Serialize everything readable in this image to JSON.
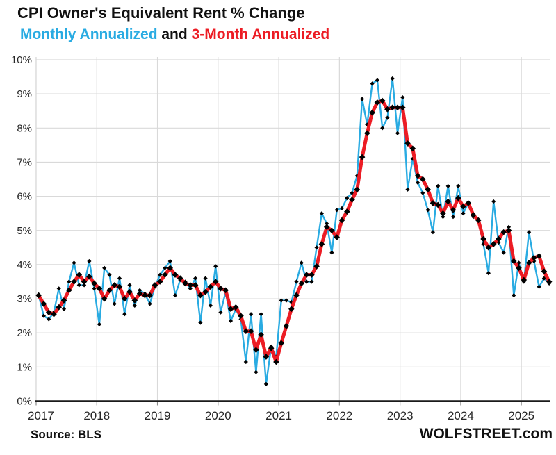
{
  "header": {
    "title": "CPI Owner's Equivalent Rent % Change",
    "subtitle_monthly": "Monthly Annualized",
    "subtitle_and": " and ",
    "subtitle_3month": "3-Month Annualized"
  },
  "footer": {
    "source": "Source: BLS",
    "watermark": "WOLFSTREET.com"
  },
  "chart_data": {
    "type": "line",
    "title": "CPI Owner's Equivalent Rent % Change",
    "subtitle": "Monthly Annualized and 3-Month Annualized",
    "frequency": "monthly",
    "points_start": "2017-01",
    "points_end": "2025-06",
    "x_axis": {
      "year_labels": [
        "2017",
        "2018",
        "2019",
        "2020",
        "2021",
        "2022",
        "2023",
        "2024",
        "2025"
      ]
    },
    "y_axis": {
      "min": 0,
      "max": 10,
      "tick_step": 1,
      "tick_suffix": "%"
    },
    "grid": true,
    "legend_position": "in-subtitle",
    "colors": {
      "grid": "#D9D9D9",
      "axis": "#1A1A1A",
      "marker": "#000000",
      "monthly_blue": "#29ABE2",
      "three_month_red": "#EC1C24"
    },
    "series": [
      {
        "name": "Monthly Annualized",
        "color": "#29ABE2",
        "marker": "diamond",
        "line_width": 2.4,
        "values": [
          3.1,
          2.5,
          2.4,
          2.6,
          3.3,
          2.7,
          3.5,
          4.05,
          3.4,
          3.4,
          4.1,
          3.3,
          2.25,
          3.9,
          3.7,
          2.85,
          3.6,
          2.55,
          3.4,
          2.8,
          3.25,
          3.15,
          2.85,
          3.35,
          3.7,
          3.9,
          4.1,
          3.1,
          3.55,
          3.5,
          3.3,
          3.6,
          2.3,
          3.6,
          2.8,
          3.95,
          2.6,
          3.2,
          2.35,
          2.7,
          2.4,
          1.15,
          2.55,
          0.85,
          2.55,
          0.5,
          1.6,
          1.3,
          2.95,
          2.95,
          2.9,
          3.5,
          4.05,
          3.5,
          3.5,
          4.5,
          5.5,
          5.2,
          4.35,
          5.6,
          5.65,
          5.95,
          6.1,
          6.6,
          8.85,
          8.1,
          9.3,
          9.4,
          8.0,
          8.3,
          9.45,
          7.85,
          8.9,
          6.2,
          7.1,
          6.4,
          6.1,
          5.6,
          4.95,
          6.3,
          5.4,
          6.3,
          5.4,
          6.3,
          5.5,
          5.8,
          5.4,
          5.3,
          4.6,
          3.75,
          5.85,
          4.65,
          4.35,
          5.1,
          3.1,
          4.05,
          3.5,
          4.95,
          4.1,
          3.35,
          3.6,
          3.45
        ]
      },
      {
        "name": "3-Month Annualized",
        "color": "#EC1C24",
        "marker": "diamond",
        "line_width": 5,
        "values": [
          3.1,
          2.85,
          2.6,
          2.55,
          2.75,
          2.95,
          3.25,
          3.5,
          3.7,
          3.5,
          3.65,
          3.45,
          3.3,
          3.0,
          3.25,
          3.4,
          3.35,
          3.0,
          3.2,
          2.95,
          3.15,
          3.1,
          3.1,
          3.4,
          3.5,
          3.7,
          3.9,
          3.7,
          3.6,
          3.45,
          3.4,
          3.4,
          3.1,
          3.2,
          3.35,
          3.5,
          3.3,
          3.25,
          2.7,
          2.75,
          2.5,
          2.05,
          2.05,
          1.5,
          1.95,
          1.3,
          1.55,
          1.15,
          1.7,
          2.2,
          2.7,
          3.1,
          3.45,
          3.7,
          3.7,
          3.95,
          4.6,
          5.1,
          5.0,
          4.8,
          5.3,
          5.55,
          5.9,
          6.2,
          7.15,
          7.85,
          8.45,
          8.75,
          8.8,
          8.55,
          8.6,
          8.6,
          8.6,
          7.55,
          7.4,
          6.6,
          6.5,
          6.2,
          5.8,
          5.75,
          5.5,
          5.85,
          5.6,
          5.95,
          5.7,
          5.8,
          5.45,
          5.3,
          4.75,
          4.5,
          4.6,
          4.75,
          4.95,
          5.0,
          4.1,
          3.9,
          3.55,
          4.05,
          4.2,
          4.25,
          3.8,
          3.5
        ]
      }
    ]
  }
}
